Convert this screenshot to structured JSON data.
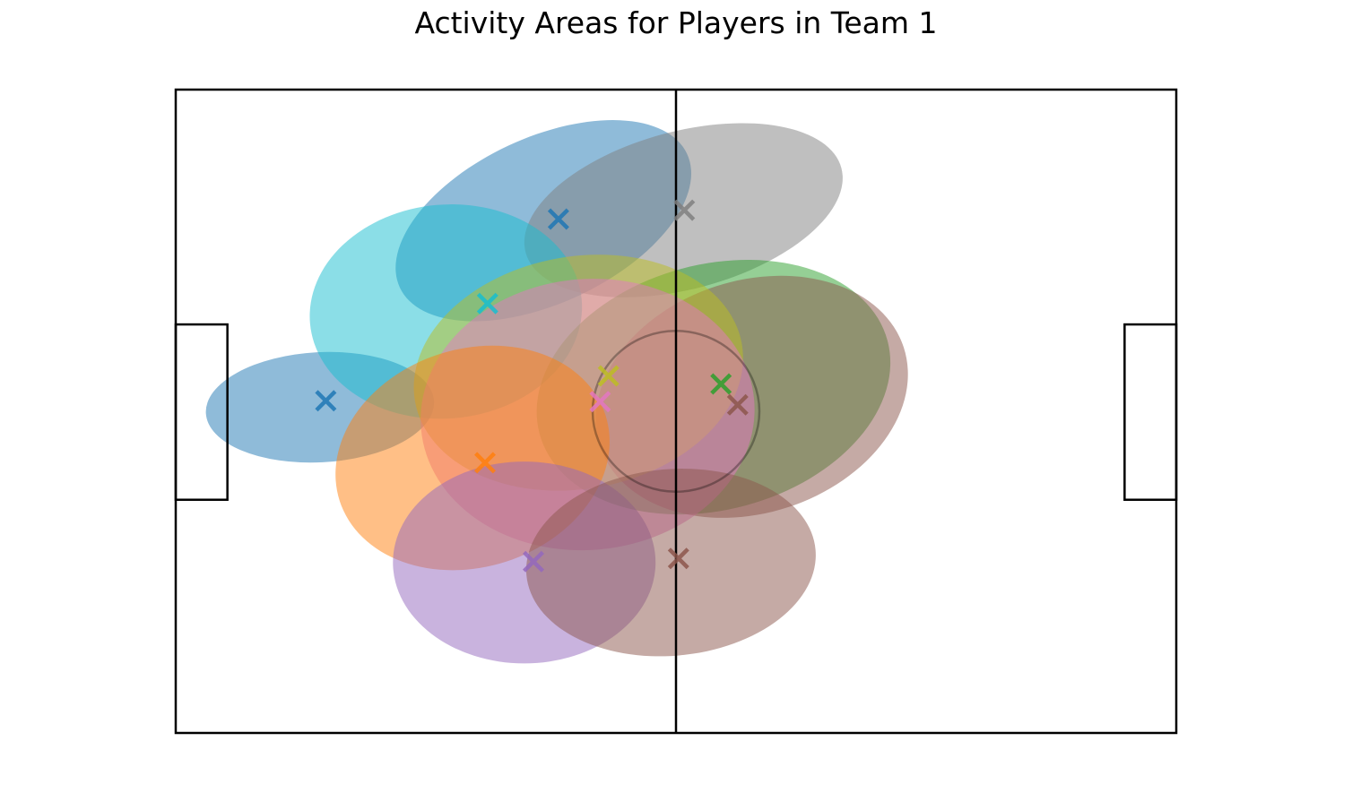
{
  "chart_data": {
    "type": "scatter",
    "title": "Activity Areas for Players in Team 1",
    "xlabel": "",
    "ylabel": "",
    "xlim": [
      0,
      120
    ],
    "ylim": [
      0,
      80
    ],
    "grid": false,
    "axes_visible": false,
    "pitch": {
      "length": 120,
      "width": 80,
      "halfway_x": 60,
      "centre_circle_radius": 10,
      "penalty_box_depth": 6.2,
      "penalty_box_y": [
        29,
        50.8
      ]
    },
    "players": [
      {
        "color": "#1f77b4",
        "x": 18.0,
        "y": 41.3,
        "ellipse": {
          "cx": 17.3,
          "cy": 40.5,
          "w": 27.4,
          "h": 13.7,
          "angle": 3
        }
      },
      {
        "color": "#1f77b4",
        "x": 45.9,
        "y": 63.9,
        "ellipse": {
          "cx": 44.1,
          "cy": 63.7,
          "w": 38.0,
          "h": 20.6,
          "angle": 25
        }
      },
      {
        "color": "#7f7f7f",
        "x": 61.0,
        "y": 65.0,
        "ellipse": {
          "cx": 60.9,
          "cy": 65.0,
          "w": 39.2,
          "h": 19.6,
          "angle": 15
        }
      },
      {
        "color": "#17becf",
        "x": 37.4,
        "y": 53.4,
        "ellipse": {
          "cx": 32.4,
          "cy": 52.4,
          "w": 32.7,
          "h": 26.6,
          "angle": 5
        }
      },
      {
        "color": "#2ca02c",
        "x": 65.4,
        "y": 43.4,
        "ellipse": {
          "cx": 64.5,
          "cy": 43.0,
          "w": 43.2,
          "h": 30.5,
          "angle": 15
        }
      },
      {
        "color": "#8c564b",
        "x": 67.4,
        "y": 40.8,
        "ellipse": {
          "cx": 69.1,
          "cy": 41.8,
          "w": 38.3,
          "h": 28.9,
          "angle": 18
        }
      },
      {
        "color": "#bcbd22",
        "x": 51.9,
        "y": 44.4,
        "ellipse": {
          "cx": 48.3,
          "cy": 44.8,
          "w": 39.8,
          "h": 28.9,
          "angle": 10
        }
      },
      {
        "color": "#e377c2",
        "x": 50.9,
        "y": 41.2,
        "ellipse": {
          "cx": 49.4,
          "cy": 39.6,
          "w": 40.1,
          "h": 33.7,
          "angle": 5
        }
      },
      {
        "color": "#ff7f0e",
        "x": 37.1,
        "y": 33.6,
        "ellipse": {
          "cx": 35.6,
          "cy": 34.2,
          "w": 33.5,
          "h": 27.1,
          "angle": 18
        }
      },
      {
        "color": "#9467bd",
        "x": 42.9,
        "y": 21.3,
        "ellipse": {
          "cx": 41.8,
          "cy": 21.2,
          "w": 31.5,
          "h": 25.1,
          "angle": 0
        }
      },
      {
        "color": "#8c564b",
        "x": 60.3,
        "y": 21.7,
        "ellipse": {
          "cx": 59.4,
          "cy": 21.2,
          "w": 34.8,
          "h": 23.2,
          "angle": 5
        }
      }
    ]
  }
}
